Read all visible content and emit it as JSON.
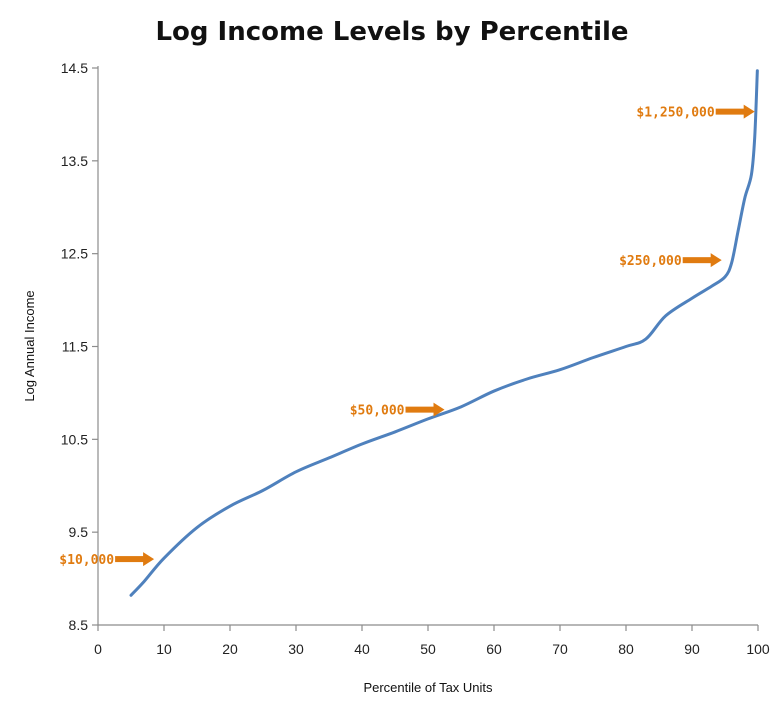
{
  "chart_data": {
    "type": "line",
    "title": "Log Income Levels by Percentile",
    "xlabel": "Percentile of Tax Units",
    "ylabel": "Log Annual Income",
    "xlim": [
      0,
      100
    ],
    "ylim": [
      8.5,
      14.5
    ],
    "x_ticks": [
      0,
      10,
      20,
      30,
      40,
      50,
      60,
      70,
      80,
      90,
      100
    ],
    "y_ticks": [
      8.5,
      9.5,
      10.5,
      11.5,
      12.5,
      13.5,
      14.5
    ],
    "y_tick_labels": [
      "8.5",
      "9.5",
      "10.5",
      "11.5",
      "12.5",
      "13.5",
      "14.5"
    ],
    "grid": false,
    "legend": "none",
    "series": [
      {
        "color": "#4f81bd",
        "x": [
          5,
          7,
          10,
          15,
          20,
          25,
          30,
          35,
          40,
          45,
          50,
          55,
          60,
          65,
          70,
          75,
          80,
          83,
          86,
          90,
          93,
          95,
          96,
          97,
          98,
          99,
          99.5,
          99.9
        ],
        "y": [
          8.82,
          8.97,
          9.22,
          9.55,
          9.78,
          9.95,
          10.15,
          10.3,
          10.45,
          10.58,
          10.72,
          10.85,
          11.02,
          11.15,
          11.25,
          11.38,
          11.5,
          11.58,
          11.83,
          12.02,
          12.15,
          12.25,
          12.4,
          12.75,
          13.1,
          13.35,
          13.75,
          14.47
        ]
      }
    ],
    "annotations": [
      {
        "text": "$10,000",
        "x": 8.5,
        "y": 9.21,
        "color": "#e07b10"
      },
      {
        "text": "$50,000",
        "x": 52.5,
        "y": 10.82,
        "color": "#e07b10"
      },
      {
        "text": "$250,000",
        "x": 94.5,
        "y": 12.43,
        "color": "#e07b10"
      },
      {
        "text": "$1,250,000",
        "x": 99.5,
        "y": 14.03,
        "color": "#e07b10"
      }
    ]
  }
}
